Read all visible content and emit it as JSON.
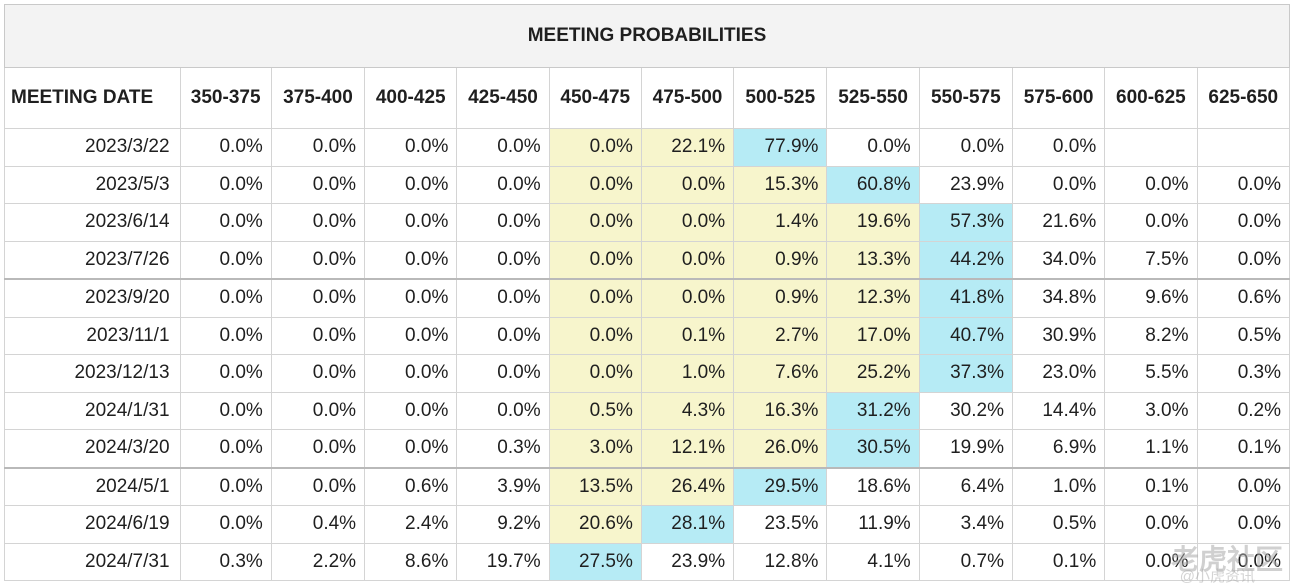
{
  "title": "MEETING PROBABILITIES",
  "chart_data": {
    "type": "table",
    "title": "MEETING PROBABILITIES",
    "columns": [
      "MEETING DATE",
      "350-375",
      "375-400",
      "400-425",
      "425-450",
      "450-475",
      "475-500",
      "500-525",
      "525-550",
      "550-575",
      "575-600",
      "600-625",
      "625-650"
    ],
    "rows": [
      {
        "date": "2023/3/22",
        "values": [
          "0.0%",
          "0.0%",
          "0.0%",
          "0.0%",
          "0.0%",
          "22.1%",
          "77.9%",
          "0.0%",
          "0.0%",
          "0.0%",
          "",
          ""
        ],
        "highlight": [
          "",
          "",
          "",
          "",
          "yellow",
          "yellow",
          "blue",
          "",
          "",
          "",
          "",
          ""
        ]
      },
      {
        "date": "2023/5/3",
        "values": [
          "0.0%",
          "0.0%",
          "0.0%",
          "0.0%",
          "0.0%",
          "0.0%",
          "15.3%",
          "60.8%",
          "23.9%",
          "0.0%",
          "0.0%",
          "0.0%"
        ],
        "highlight": [
          "",
          "",
          "",
          "",
          "yellow",
          "yellow",
          "yellow",
          "blue",
          "",
          "",
          "",
          ""
        ]
      },
      {
        "date": "2023/6/14",
        "values": [
          "0.0%",
          "0.0%",
          "0.0%",
          "0.0%",
          "0.0%",
          "0.0%",
          "1.4%",
          "19.6%",
          "57.3%",
          "21.6%",
          "0.0%",
          "0.0%"
        ],
        "highlight": [
          "",
          "",
          "",
          "",
          "yellow",
          "yellow",
          "yellow",
          "yellow",
          "blue",
          "",
          "",
          ""
        ]
      },
      {
        "date": "2023/7/26",
        "values": [
          "0.0%",
          "0.0%",
          "0.0%",
          "0.0%",
          "0.0%",
          "0.0%",
          "0.9%",
          "13.3%",
          "44.2%",
          "34.0%",
          "7.5%",
          "0.0%"
        ],
        "highlight": [
          "",
          "",
          "",
          "",
          "yellow",
          "yellow",
          "yellow",
          "yellow",
          "blue",
          "",
          "",
          ""
        ]
      },
      {
        "date": "2023/9/20",
        "values": [
          "0.0%",
          "0.0%",
          "0.0%",
          "0.0%",
          "0.0%",
          "0.0%",
          "0.9%",
          "12.3%",
          "41.8%",
          "34.8%",
          "9.6%",
          "0.6%"
        ],
        "highlight": [
          "",
          "",
          "",
          "",
          "yellow",
          "yellow",
          "yellow",
          "yellow",
          "blue",
          "",
          "",
          ""
        ]
      },
      {
        "date": "2023/11/1",
        "values": [
          "0.0%",
          "0.0%",
          "0.0%",
          "0.0%",
          "0.0%",
          "0.1%",
          "2.7%",
          "17.0%",
          "40.7%",
          "30.9%",
          "8.2%",
          "0.5%"
        ],
        "highlight": [
          "",
          "",
          "",
          "",
          "yellow",
          "yellow",
          "yellow",
          "yellow",
          "blue",
          "",
          "",
          ""
        ]
      },
      {
        "date": "2023/12/13",
        "values": [
          "0.0%",
          "0.0%",
          "0.0%",
          "0.0%",
          "0.0%",
          "1.0%",
          "7.6%",
          "25.2%",
          "37.3%",
          "23.0%",
          "5.5%",
          "0.3%"
        ],
        "highlight": [
          "",
          "",
          "",
          "",
          "yellow",
          "yellow",
          "yellow",
          "yellow",
          "blue",
          "",
          "",
          ""
        ]
      },
      {
        "date": "2024/1/31",
        "values": [
          "0.0%",
          "0.0%",
          "0.0%",
          "0.0%",
          "0.5%",
          "4.3%",
          "16.3%",
          "31.2%",
          "30.2%",
          "14.4%",
          "3.0%",
          "0.2%"
        ],
        "highlight": [
          "",
          "",
          "",
          "",
          "yellow",
          "yellow",
          "yellow",
          "blue",
          "",
          "",
          "",
          ""
        ]
      },
      {
        "date": "2024/3/20",
        "values": [
          "0.0%",
          "0.0%",
          "0.0%",
          "0.3%",
          "3.0%",
          "12.1%",
          "26.0%",
          "30.5%",
          "19.9%",
          "6.9%",
          "1.1%",
          "0.1%"
        ],
        "highlight": [
          "",
          "",
          "",
          "",
          "yellow",
          "yellow",
          "yellow",
          "blue",
          "",
          "",
          "",
          ""
        ]
      },
      {
        "date": "2024/5/1",
        "values": [
          "0.0%",
          "0.0%",
          "0.6%",
          "3.9%",
          "13.5%",
          "26.4%",
          "29.5%",
          "18.6%",
          "6.4%",
          "1.0%",
          "0.1%",
          "0.0%"
        ],
        "highlight": [
          "",
          "",
          "",
          "",
          "yellow",
          "yellow",
          "blue",
          "",
          "",
          "",
          "",
          ""
        ]
      },
      {
        "date": "2024/6/19",
        "values": [
          "0.0%",
          "0.4%",
          "2.4%",
          "9.2%",
          "20.6%",
          "28.1%",
          "23.5%",
          "11.9%",
          "3.4%",
          "0.5%",
          "0.0%",
          "0.0%"
        ],
        "highlight": [
          "",
          "",
          "",
          "",
          "yellow",
          "blue",
          "",
          "",
          "",
          "",
          "",
          ""
        ]
      },
      {
        "date": "2024/7/31",
        "values": [
          "0.3%",
          "2.2%",
          "8.6%",
          "19.7%",
          "27.5%",
          "23.9%",
          "12.8%",
          "4.1%",
          "0.7%",
          "0.1%",
          "0.0%",
          "0.0%"
        ],
        "highlight": [
          "",
          "",
          "",
          "",
          "blue",
          "",
          "",
          "",
          "",
          "",
          "",
          ""
        ]
      }
    ],
    "separators_before_rows": [
      4,
      9
    ],
    "colors": {
      "yellow": "#f7f5cc",
      "blue": "#b6ebf5"
    }
  },
  "watermark": {
    "main": "老虎社区",
    "sub": "@小虎资讯"
  }
}
